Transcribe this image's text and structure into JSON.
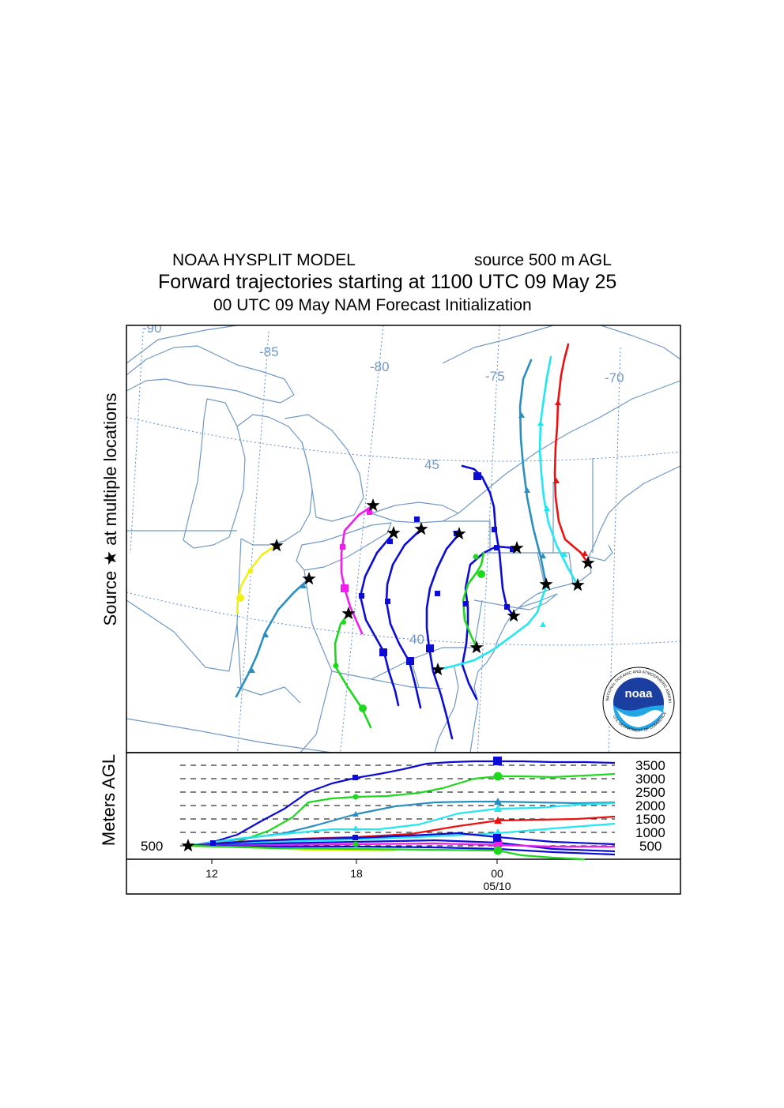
{
  "header": {
    "model": "NOAA HYSPLIT MODEL",
    "source": "source 500 m AGL",
    "title": "Forward trajectories starting at 1100 UTC 09 May 25",
    "init": "00 UTC 09 May    NAM   Forecast Initialization"
  },
  "map": {
    "y_label": "Source ★  at multiple locations",
    "lon_labels": [
      "-90",
      "-85",
      "-80",
      "-75",
      "-70"
    ],
    "lat_labels": [
      "45",
      "40"
    ],
    "logo_text": "noaa",
    "logo_ring_top": "NATIONAL OCEANIC AND ATMOSPHERIC ADMINISTRATION",
    "logo_ring_bottom": "U.S. DEPARTMENT OF COMMERCE"
  },
  "height_panel": {
    "y_label": "Meters AGL",
    "start_label": "500",
    "levels": [
      "3500",
      "3000",
      "2500",
      "2000",
      "1500",
      "1000",
      "500"
    ],
    "time_ticks": [
      "12",
      "18",
      "00"
    ],
    "date_label": "05/10"
  },
  "colors": {
    "map_lines": "#6f98c4",
    "grid": "#5b8ad0",
    "blue": "#0c0cd4",
    "green": "#1ed81e",
    "magenta": "#f01cf0",
    "yellow": "#f0f018",
    "steel": "#2a8ec0",
    "cyan": "#22e6f0",
    "red": "#ee1010"
  }
}
